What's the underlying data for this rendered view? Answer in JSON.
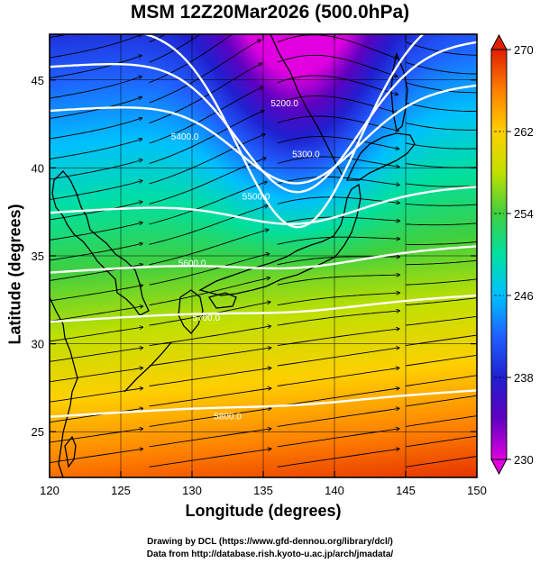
{
  "title": "MSM 12Z20Mar2026 (500.0hPa)",
  "xlabel": "Longitude (degrees)",
  "ylabel": "Latitude  (degrees)",
  "footer": {
    "line1": "Drawing by DCL (https://www.gfd-dennou.org/library/dcl/)",
    "line2": "Data from http://database.rish.kyoto-u.ac.jp/arch/jmadata/"
  },
  "map_data": {
    "type": "heatmap",
    "variable": "temperature with geopotential height contours and wind streamlines",
    "lon_range": [
      120,
      150
    ],
    "lat_range": [
      22.4,
      47.6
    ],
    "x_ticks": [
      120,
      125,
      130,
      135,
      140,
      145,
      150
    ],
    "y_ticks": [
      25,
      30,
      35,
      40,
      45
    ],
    "colorbar": {
      "range": [
        230,
        270
      ],
      "tick_labels": [
        230,
        238,
        246,
        254,
        262,
        270
      ],
      "colors": [
        "#e000e0",
        "#6000c0",
        "#2020d0",
        "#2060ff",
        "#00c0ff",
        "#00e0a0",
        "#40d040",
        "#c0e000",
        "#ffd000",
        "#ff8000",
        "#e02000"
      ]
    },
    "contours": [
      {
        "label": "5200.0"
      },
      {
        "label": "5300.0"
      },
      {
        "label": "5400.0"
      },
      {
        "label": "5500.0"
      },
      {
        "label": "5600.0"
      },
      {
        "label": "5700.0"
      },
      {
        "label": "5800.0"
      }
    ],
    "contour_color": "#ffffff",
    "streamline_color": "#000000",
    "coastline_color": "#000000"
  }
}
